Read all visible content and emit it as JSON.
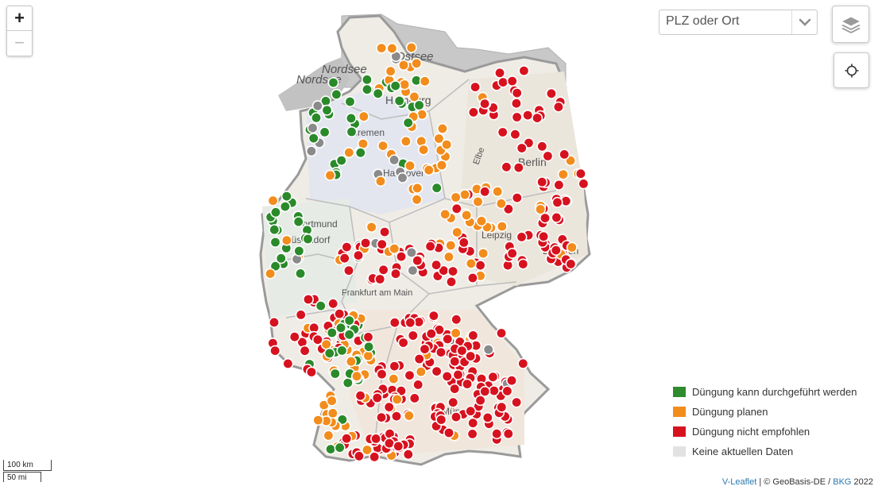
{
  "map": {
    "labels": [
      {
        "text": "Nordsee",
        "name": "label-nordsee-1"
      },
      {
        "text": "Nordsee",
        "name": "label-nordsee-2"
      },
      {
        "text": "Ostsee",
        "name": "label-ostsee"
      },
      {
        "text": "Hamburg",
        "name": "label-hamburg"
      },
      {
        "text": "Bremen",
        "name": "label-bremen"
      },
      {
        "text": "Hannover",
        "name": "label-hannover"
      },
      {
        "text": "Berlin",
        "name": "label-berlin"
      },
      {
        "text": "Elbe",
        "name": "label-elbe"
      },
      {
        "text": "Dortmund",
        "name": "label-dortmund"
      },
      {
        "text": "Düsseldorf",
        "name": "label-duesseldorf"
      },
      {
        "text": "Leipzig",
        "name": "label-leipzig"
      },
      {
        "text": "Dresden",
        "name": "label-dresden"
      },
      {
        "text": "Frankfurt am Main",
        "name": "label-frankfurt"
      },
      {
        "text": "Nürnberg",
        "name": "label-nuernberg"
      },
      {
        "text": "München",
        "name": "label-muenchen"
      }
    ]
  },
  "controls": {
    "zoom_in": "+",
    "zoom_out": "−",
    "search_placeholder": "PLZ oder Ort",
    "layers_icon": "layers-icon",
    "locate_icon": "crosshair-icon",
    "dropdown_icon": "chevron-down-icon"
  },
  "legend": {
    "items": [
      {
        "label": "Düngung kann durchgeführt werden",
        "color": "#2e8b2e"
      },
      {
        "label": "Düngung planen",
        "color": "#f28c1c"
      },
      {
        "label": "Düngung nicht empfohlen",
        "color": "#d7121f"
      },
      {
        "label": "Keine aktuellen Daten",
        "color": "#e2e2e2"
      }
    ]
  },
  "marker_colors": {
    "green": "#2a8a2a",
    "orange": "#f28c1c",
    "red": "#d7121f",
    "gray": "#8a8a8a"
  },
  "scale": {
    "metric": "100 km",
    "imperial": "50 mi"
  },
  "attribution": {
    "leaflet": "V-Leaflet",
    "separator": " | © GeoBasis-DE / ",
    "bkg": "BKG",
    "year": " 2022"
  }
}
